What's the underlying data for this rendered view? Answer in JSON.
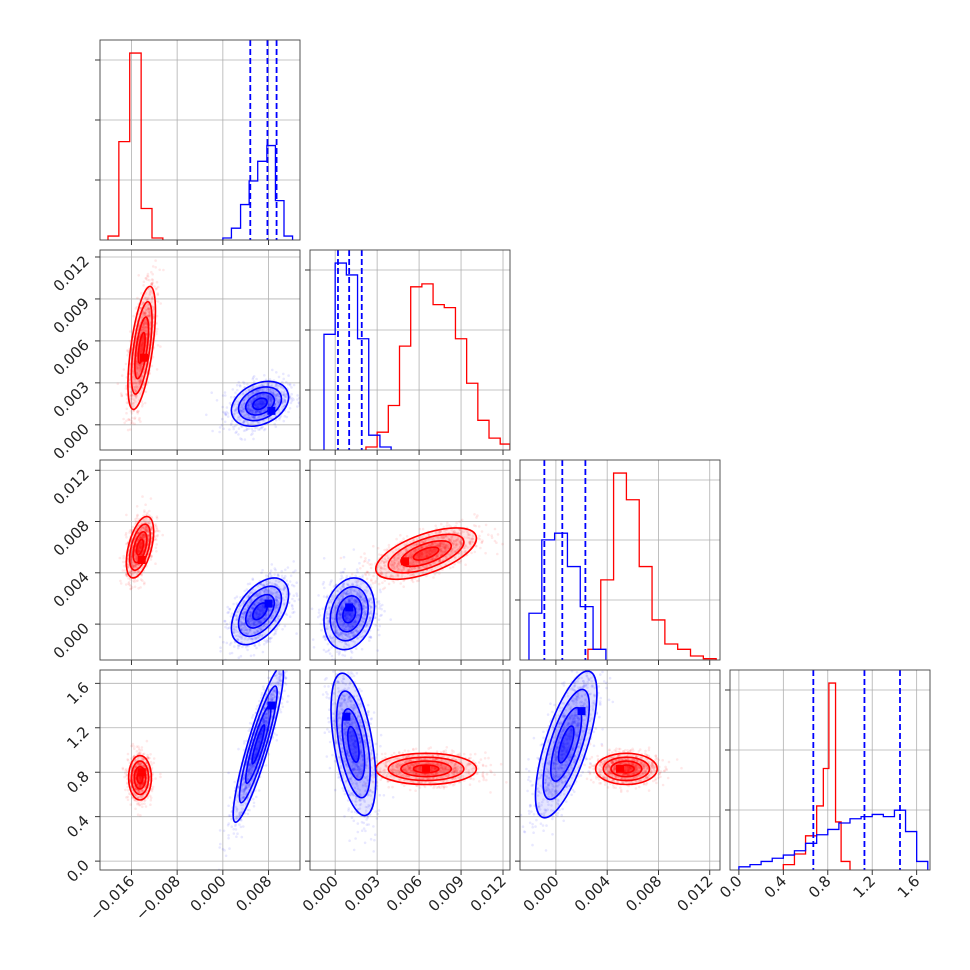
{
  "colors": {
    "red": "#ff0000",
    "blue": "#0000ff"
  },
  "chart_data": {
    "type": "scatter",
    "layout": "corner-plot",
    "parameters": 4,
    "series_colors": [
      "#ff0000",
      "#0000ff"
    ],
    "grid": true,
    "axes": {
      "p0": {
        "range": [
          -0.0215,
          0.0135
        ],
        "ticks": [
          "−0.016",
          "−0.008",
          "0.000",
          "0.008"
        ],
        "tick_values": [
          -0.016,
          -0.008,
          0.0,
          0.008
        ]
      },
      "p1": {
        "range": [
          -0.0018,
          0.0125
        ],
        "ticks": [
          "0.000",
          "0.003",
          "0.006",
          "0.009",
          "0.012"
        ],
        "tick_values": [
          0.0,
          0.003,
          0.006,
          0.009,
          0.012
        ]
      },
      "p2": {
        "range": [
          -0.0028,
          0.0128
        ],
        "ticks": [
          "0.000",
          "0.004",
          "0.008",
          "0.012"
        ],
        "tick_values": [
          0.0,
          0.004,
          0.008,
          0.012
        ]
      },
      "p3": {
        "range": [
          -0.08,
          1.72
        ],
        "ticks": [
          "0.0",
          "0.4",
          "0.8",
          "1.2",
          "1.6"
        ],
        "tick_values": [
          0.0,
          0.4,
          0.8,
          1.2,
          1.6
        ]
      }
    },
    "histograms": [
      {
        "parameter": "p0",
        "red": {
          "edges": [
            -0.0201,
            -0.0182,
            -0.0163,
            -0.0143,
            -0.0124,
            -0.0105
          ],
          "counts": [
            2,
            50,
            95,
            16,
            1
          ]
        },
        "blue": {
          "edges": [
            0.0,
            0.0015,
            0.0031,
            0.0046,
            0.0061,
            0.0077,
            0.0092,
            0.0107,
            0.0122
          ],
          "counts": [
            1,
            6,
            18,
            30,
            40,
            48,
            20,
            2
          ]
        },
        "blue_quantiles": [
          0.0048,
          0.0078,
          0.0094
        ]
      },
      {
        "parameter": "p1",
        "red": {
          "edges": [
            0.0022,
            0.003,
            0.0038,
            0.0046,
            0.0054,
            0.0062,
            0.007,
            0.0078,
            0.0086,
            0.0094,
            0.0102,
            0.011,
            0.0118,
            0.0125
          ],
          "counts": [
            2,
            12,
            30,
            70,
            110,
            112,
            98,
            96,
            75,
            45,
            20,
            8,
            4
          ]
        },
        "blue": {
          "edges": [
            -0.0008,
            0.0,
            0.0008,
            0.0016,
            0.0024,
            0.0032,
            0.004
          ],
          "counts": [
            78,
            126,
            118,
            75,
            10,
            2
          ]
        },
        "blue_quantiles": [
          0.0002,
          0.001,
          0.0019
        ]
      },
      {
        "parameter": "p2",
        "red": {
          "edges": [
            0.0025,
            0.0035,
            0.0045,
            0.0055,
            0.0065,
            0.0075,
            0.0085,
            0.0095,
            0.0105,
            0.0115,
            0.0125
          ],
          "counts": [
            8,
            60,
            140,
            120,
            70,
            30,
            12,
            8,
            3,
            1
          ]
        },
        "blue": {
          "edges": [
            -0.0021,
            -0.0011,
            -0.0001,
            0.0009,
            0.0019,
            0.0029,
            0.0039
          ],
          "counts": [
            35,
            90,
            95,
            70,
            40,
            8
          ]
        },
        "blue_quantiles": [
          -0.0009,
          0.0005,
          0.0023
        ]
      },
      {
        "parameter": "p3",
        "red": {
          "edges": [
            0.4,
            0.5,
            0.6,
            0.7,
            0.76,
            0.81,
            0.87,
            0.92,
            1.0
          ],
          "counts": [
            5,
            15,
            32,
            60,
            95,
            175,
            45,
            8
          ]
        },
        "blue": {
          "edges": [
            0.0,
            0.1,
            0.2,
            0.3,
            0.4,
            0.5,
            0.6,
            0.7,
            0.8,
            0.9,
            1.0,
            1.1,
            1.2,
            1.3,
            1.4,
            1.5,
            1.6,
            1.7
          ],
          "counts": [
            3,
            5,
            8,
            11,
            14,
            18,
            25,
            33,
            38,
            44,
            48,
            50,
            52,
            50,
            56,
            36,
            8
          ]
        },
        "blue_quantiles": [
          0.67,
          1.13,
          1.45
        ]
      }
    ],
    "scatter_panels": [
      {
        "x": "p0",
        "y": "p1",
        "red": {
          "center": [
            -0.0142,
            0.0055
          ],
          "spread": [
            0.0012,
            0.0022
          ],
          "rho": 0.6,
          "samples": 1000
        },
        "blue": {
          "center": [
            0.0065,
            0.0015
          ],
          "spread": [
            0.0025,
            0.0008
          ],
          "rho": 0.3,
          "samples": 1000
        },
        "red_peak": [
          -0.0138,
          0.0048
        ],
        "blue_peak": [
          0.0085,
          0.001
        ]
      },
      {
        "x": "p0",
        "y": "p2",
        "red": {
          "center": [
            -0.0145,
            0.006
          ],
          "spread": [
            0.0012,
            0.0012
          ],
          "rho": 0.5,
          "samples": 1000
        },
        "blue": {
          "center": [
            0.0065,
            0.001
          ],
          "spread": [
            0.0025,
            0.0013
          ],
          "rho": 0.5,
          "samples": 1000
        },
        "red_peak": [
          -0.0142,
          0.005
        ],
        "blue_peak": [
          0.008,
          0.0016
        ]
      },
      {
        "x": "p0",
        "y": "p3",
        "red": {
          "center": [
            -0.0145,
            0.75
          ],
          "spread": [
            0.001,
            0.1
          ],
          "rho": 0.0,
          "samples": 900
        },
        "blue": {
          "center": [
            0.0062,
            1.05
          ],
          "spread": [
            0.0022,
            0.35
          ],
          "rho": 0.9,
          "samples": 1100
        },
        "red_peak": [
          -0.0142,
          0.8
        ],
        "blue_peak": [
          0.0085,
          1.4
        ]
      },
      {
        "x": "p1",
        "y": "p2",
        "red": {
          "center": [
            0.0065,
            0.0055
          ],
          "spread": [
            0.0018,
            0.001
          ],
          "rho": 0.6,
          "samples": 1100
        },
        "blue": {
          "center": [
            0.001,
            0.0008
          ],
          "spread": [
            0.0009,
            0.0014
          ],
          "rho": 0.2,
          "samples": 1000
        },
        "red_peak": [
          0.005,
          0.0049
        ],
        "blue_peak": [
          0.001,
          0.0013
        ]
      },
      {
        "x": "p1",
        "y": "p3",
        "red": {
          "center": [
            0.0065,
            0.83
          ],
          "spread": [
            0.0018,
            0.07
          ],
          "rho": 0.0,
          "samples": 1000
        },
        "blue": {
          "center": [
            0.0013,
            1.05
          ],
          "spread": [
            0.0008,
            0.32
          ],
          "rho": -0.5,
          "samples": 1000
        },
        "red_peak": [
          0.0065,
          0.83
        ],
        "blue_peak": [
          0.0008,
          1.3
        ]
      },
      {
        "x": "p2",
        "y": "p3",
        "red": {
          "center": [
            0.0055,
            0.83
          ],
          "spread": [
            0.0012,
            0.07
          ],
          "rho": 0.0,
          "samples": 1000
        },
        "blue": {
          "center": [
            0.0008,
            1.05
          ],
          "spread": [
            0.0012,
            0.33
          ],
          "rho": 0.7,
          "samples": 1000
        },
        "red_peak": [
          0.005,
          0.83
        ],
        "blue_peak": [
          0.002,
          1.35
        ]
      }
    ]
  }
}
